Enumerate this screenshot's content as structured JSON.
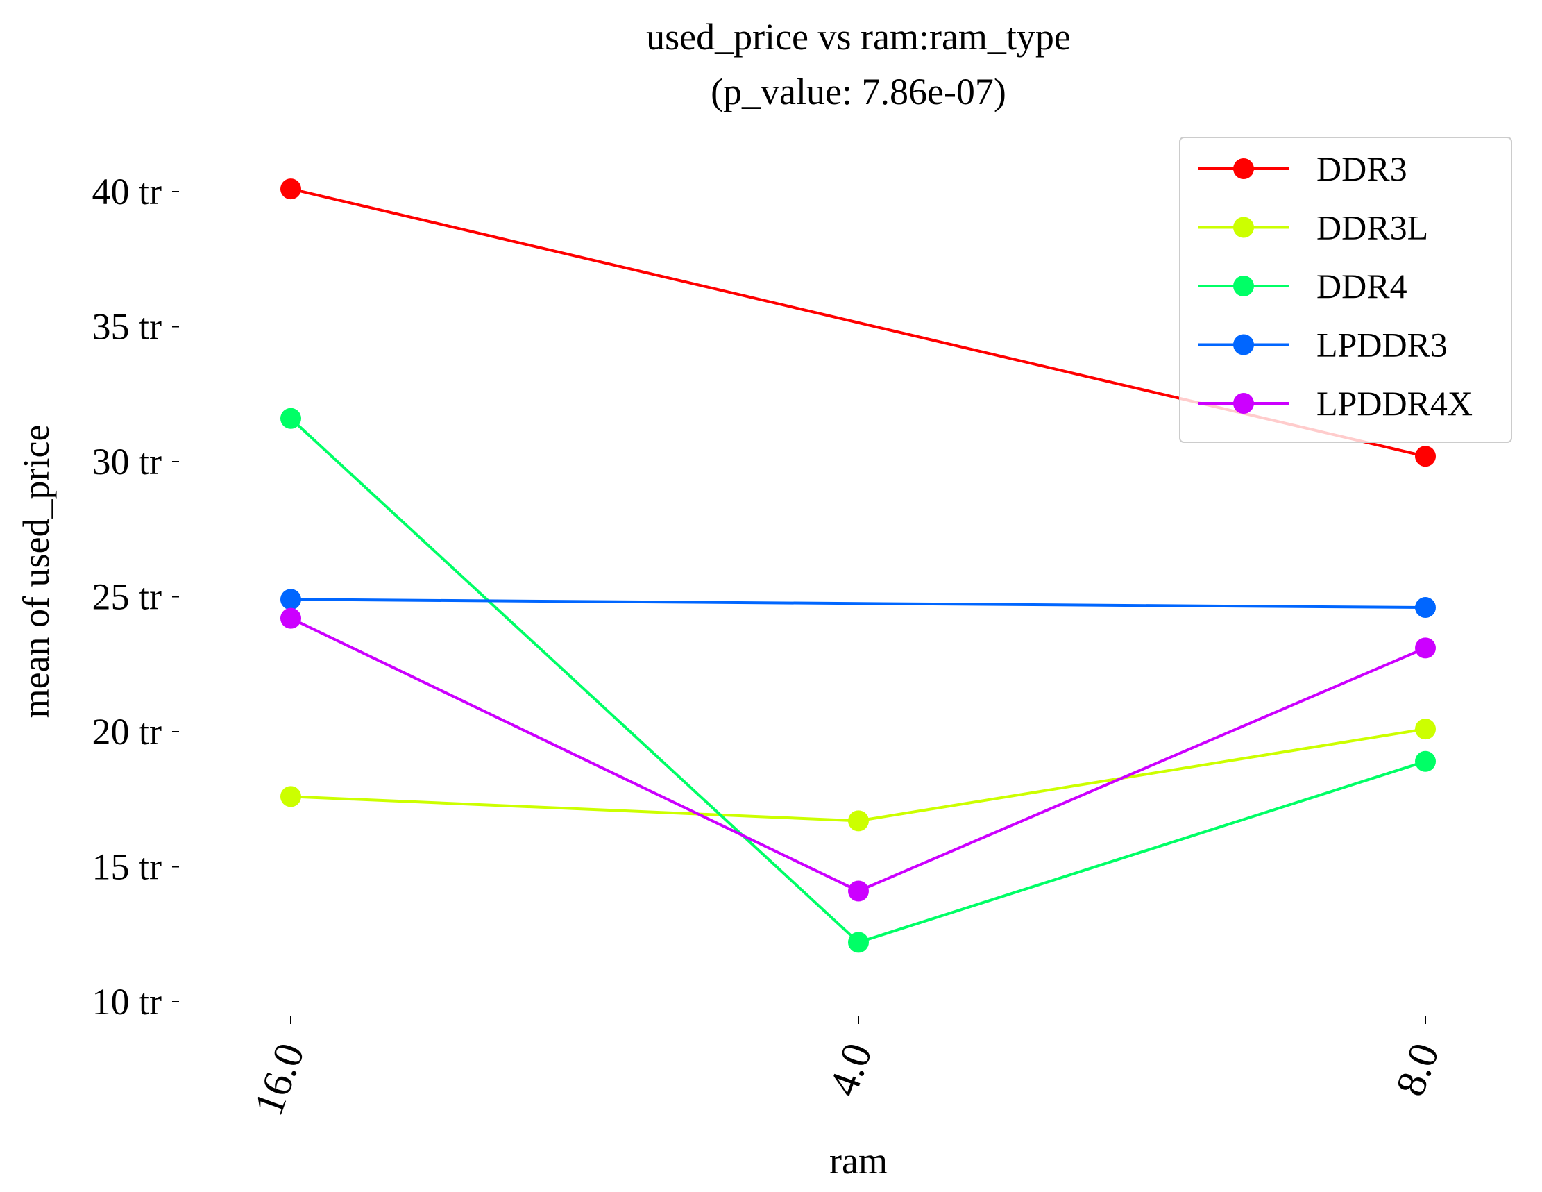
{
  "chart_data": {
    "type": "line",
    "title": "used_price vs ram:ram_type",
    "subtitle": "(p_value: 7.86e-07)",
    "xlabel": "ram",
    "ylabel": "mean of used_price",
    "categories": [
      "16.0",
      "4.0",
      "8.0"
    ],
    "ylim": [
      9.5,
      41.5
    ],
    "y_ticks": [
      {
        "value": 10,
        "label": "10 tr"
      },
      {
        "value": 15,
        "label": "15 tr"
      },
      {
        "value": 20,
        "label": "20 tr"
      },
      {
        "value": 25,
        "label": "25 tr"
      },
      {
        "value": 30,
        "label": "30 tr"
      },
      {
        "value": 35,
        "label": "35 tr"
      },
      {
        "value": 40,
        "label": "40 tr"
      }
    ],
    "grid": false,
    "legend_position": "top-right",
    "series": [
      {
        "name": "DDR3",
        "color": "#ff0000",
        "values": [
          40.1,
          null,
          30.2
        ]
      },
      {
        "name": "DDR3L",
        "color": "#ccff00",
        "values": [
          17.6,
          16.7,
          20.1
        ]
      },
      {
        "name": "DDR4",
        "color": "#00ff66",
        "values": [
          31.6,
          12.2,
          18.9
        ]
      },
      {
        "name": "LPDDR3",
        "color": "#0066ff",
        "values": [
          24.9,
          null,
          24.6
        ]
      },
      {
        "name": "LPDDR4X",
        "color": "#cc00ff",
        "values": [
          24.2,
          14.1,
          23.1
        ]
      }
    ]
  }
}
